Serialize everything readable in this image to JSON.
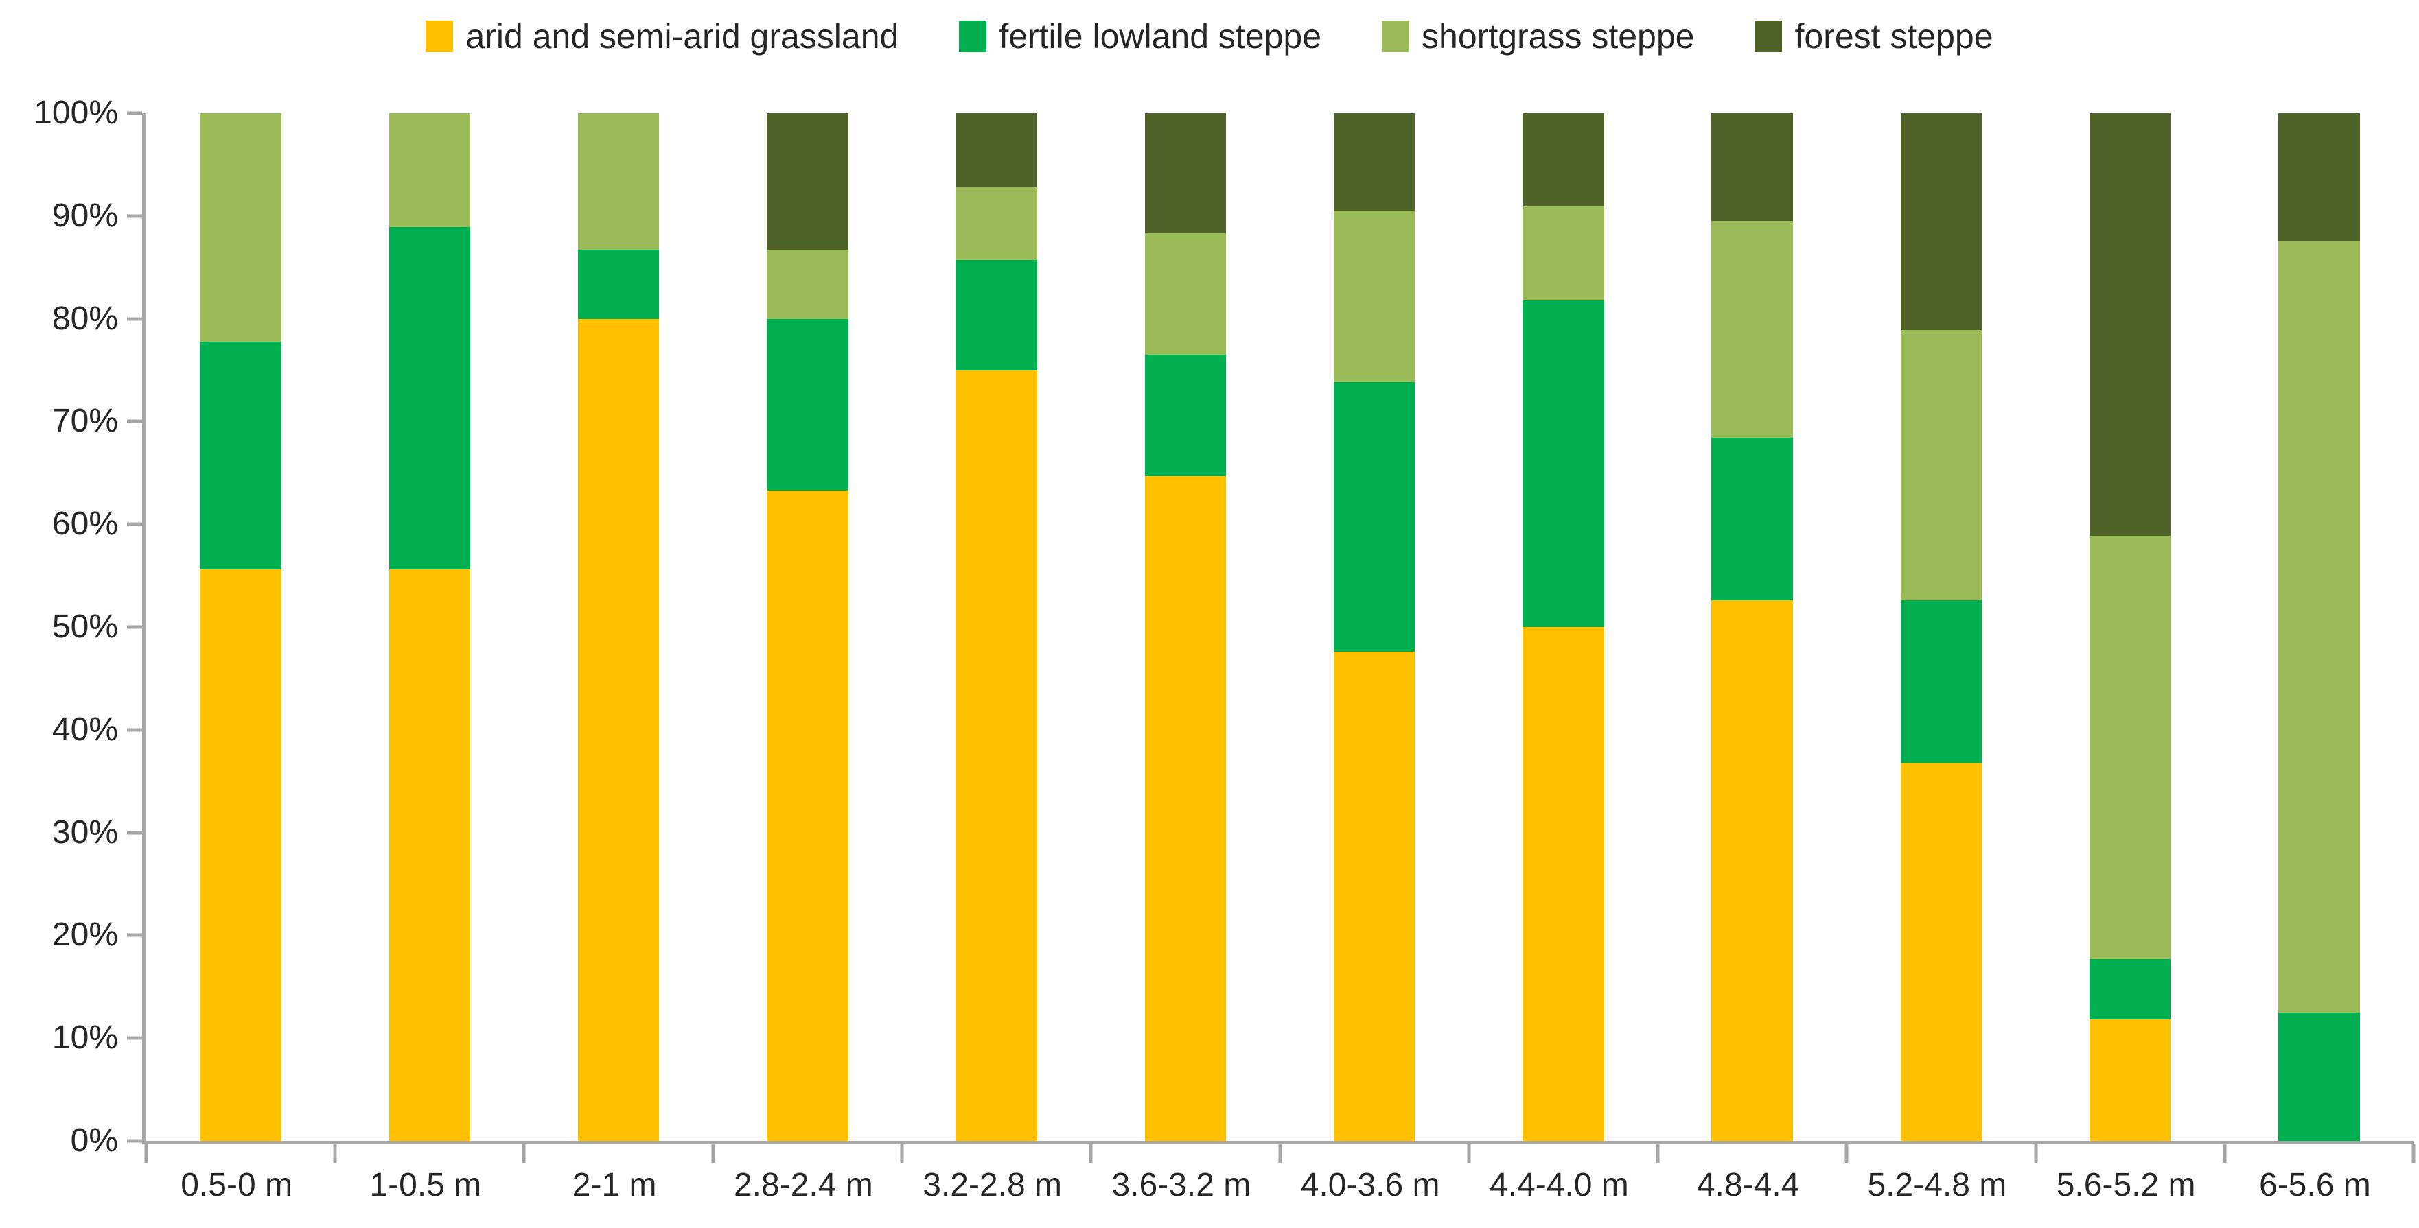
{
  "chart_data": {
    "type": "bar",
    "stacked": true,
    "percent": true,
    "title": "",
    "xlabel": "",
    "ylabel": "",
    "ylim": [
      0,
      100
    ],
    "grid": false,
    "legend_position": "top",
    "background_color": "#FFFFFF",
    "axis_color": "#A6A6A6",
    "text_color": "#262626",
    "y_ticks": [
      "0%",
      "10%",
      "20%",
      "30%",
      "40%",
      "50%",
      "60%",
      "70%",
      "80%",
      "90%",
      "100%"
    ],
    "categories": [
      "0.5-0 m",
      "1-0.5 m",
      "2-1 m",
      "2.8-2.4 m",
      "3.2-2.8 m",
      "3.6-3.2 m",
      "4.0-3.6 m",
      "4.4-4.0 m",
      "4.8-4.4",
      "5.2-4.8 m",
      "5.6-5.2 m",
      "6-5.6 m"
    ],
    "series": [
      {
        "name": "arid and semi-arid grassland",
        "color": "#FFC000",
        "values": [
          55.6,
          55.6,
          80.0,
          63.3,
          75.0,
          64.7,
          47.6,
          50.0,
          52.6,
          36.8,
          11.8,
          0
        ]
      },
      {
        "name": "fertile lowland steppe",
        "color": "#00B050",
        "values": [
          22.2,
          33.3,
          6.7,
          16.7,
          10.7,
          11.8,
          26.2,
          31.8,
          15.8,
          15.8,
          5.9,
          12.5
        ]
      },
      {
        "name": "shortgrass steppe",
        "color": "#9BBB59",
        "values": [
          22.2,
          11.1,
          13.3,
          6.7,
          7.1,
          11.8,
          16.7,
          9.1,
          21.1,
          26.3,
          41.2,
          75.0
        ]
      },
      {
        "name": "forest steppe",
        "color": "#4F6228",
        "values": [
          0,
          0,
          0,
          13.3,
          7.2,
          11.7,
          9.5,
          9.1,
          10.5,
          21.1,
          41.1,
          12.5
        ]
      }
    ]
  }
}
